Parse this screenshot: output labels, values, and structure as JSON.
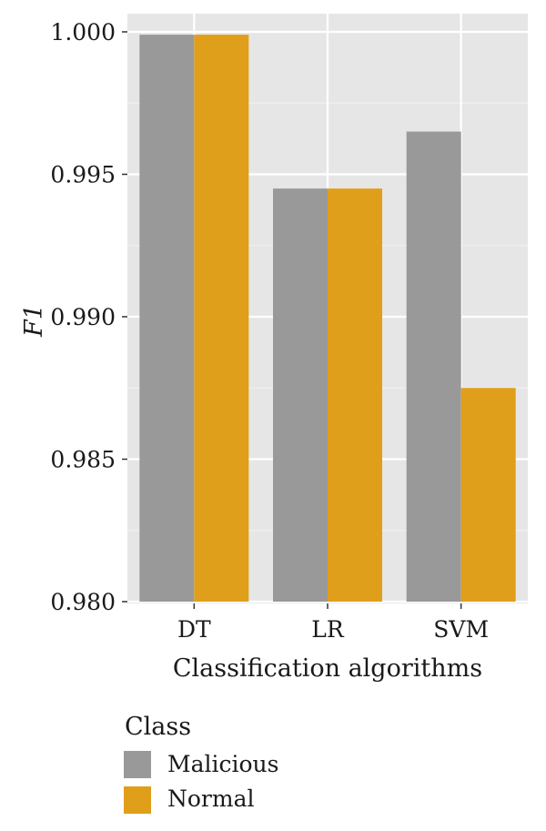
{
  "chart_data": {
    "type": "bar",
    "title": "",
    "xlabel": "Classification algorithms",
    "ylabel": "F1",
    "categories": [
      "DT",
      "LR",
      "SVM"
    ],
    "series": [
      {
        "name": "Malicious",
        "values": [
          0.9999,
          0.9945,
          0.9965
        ]
      },
      {
        "name": "Normal",
        "values": [
          0.9999,
          0.9945,
          0.9875
        ]
      }
    ],
    "ylim": [
      0.98,
      1.0
    ],
    "yticks": [
      "0.980",
      "0.985",
      "0.990",
      "0.995",
      "1.000"
    ],
    "ytick_values": [
      0.98,
      0.985,
      0.99,
      0.995,
      1.0
    ],
    "grid": true,
    "legend": {
      "title": "Class",
      "placement": "bottom-left"
    },
    "colors": {
      "Malicious": "#999999",
      "Normal": "#e09f1a",
      "panel": "#e6e6e6",
      "grid_major": "#ffffff",
      "grid_minor": "#f0f0f0"
    }
  }
}
